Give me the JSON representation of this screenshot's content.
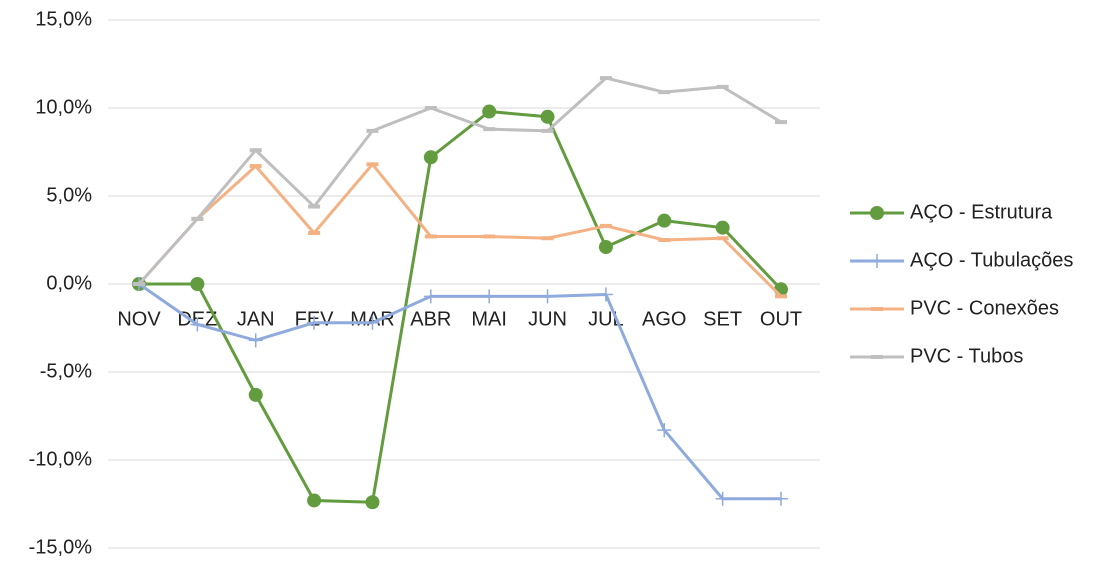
{
  "chart_data": {
    "type": "line",
    "categories": [
      "NOV",
      "DEZ",
      "JAN",
      "FEV",
      "MAR",
      "ABR",
      "MAI",
      "JUN",
      "JUL",
      "AGO",
      "SET",
      "OUT"
    ],
    "series": [
      {
        "name": "AÇO - Estrutura",
        "color": "#629c3f",
        "marker": "circle",
        "values": [
          0,
          0,
          -6.3,
          -12.3,
          -12.4,
          7.2,
          9.8,
          9.5,
          2.1,
          3.6,
          3.2,
          -0.3
        ]
      },
      {
        "name": "AÇO - Tubulações",
        "color": "#8faadc",
        "marker": "plus",
        "values": [
          0,
          -2.3,
          -3.2,
          -2.2,
          -2.2,
          -0.7,
          -0.7,
          -0.7,
          -0.6,
          -8.3,
          -12.2,
          -12.2
        ]
      },
      {
        "name": "PVC - Conexões",
        "color": "#f4b183",
        "marker": "dash",
        "values": [
          0,
          3.7,
          6.7,
          2.9,
          6.8,
          2.7,
          2.7,
          2.6,
          3.3,
          2.5,
          2.6,
          -0.7
        ]
      },
      {
        "name": "PVC - Tubos",
        "color": "#bfbfbf",
        "marker": "dash",
        "values": [
          0,
          3.7,
          7.6,
          4.4,
          8.7,
          10.0,
          8.8,
          8.7,
          11.7,
          10.9,
          11.2,
          9.2
        ]
      }
    ],
    "ylim": [
      -15,
      15
    ],
    "yticks": [
      {
        "value": -15,
        "label": "-15,0%"
      },
      {
        "value": -10,
        "label": "-10,0%"
      },
      {
        "value": -5,
        "label": "-5,0%"
      },
      {
        "value": 0,
        "label": "0,0%"
      },
      {
        "value": 5,
        "label": "5,0%"
      },
      {
        "value": 10,
        "label": "10,0%"
      },
      {
        "value": 15,
        "label": "15,0%"
      }
    ],
    "grid": true,
    "legend": "right"
  }
}
